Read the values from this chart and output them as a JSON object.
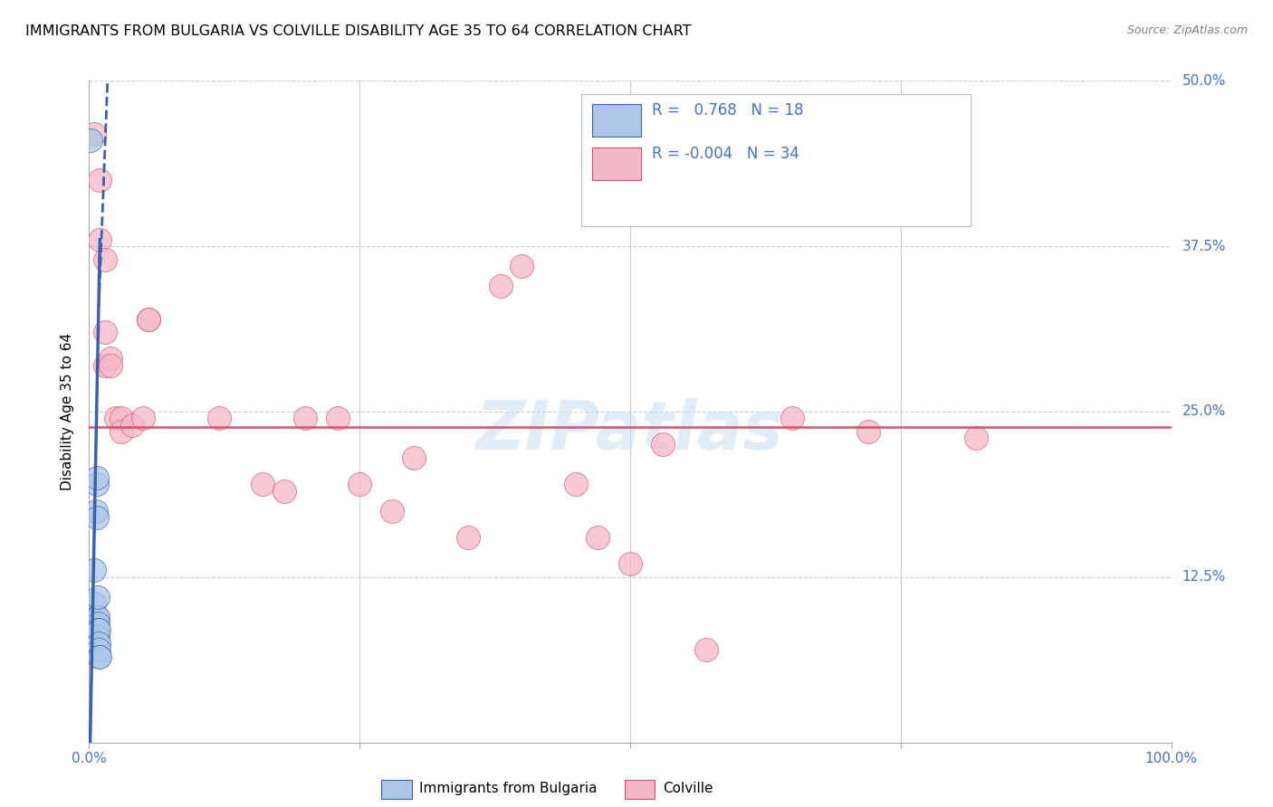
{
  "title": "IMMIGRANTS FROM BULGARIA VS COLVILLE DISABILITY AGE 35 TO 64 CORRELATION CHART",
  "source": "Source: ZipAtlas.com",
  "ylabel": "Disability Age 35 to 64",
  "xlabel": "",
  "xlim": [
    0,
    1.0
  ],
  "ylim": [
    0,
    0.5
  ],
  "xticks": [
    0.0,
    0.25,
    0.5,
    0.75,
    1.0
  ],
  "yticks": [
    0.0,
    0.125,
    0.25,
    0.375,
    0.5
  ],
  "yticklabels": [
    "",
    "12.5%",
    "25.0%",
    "37.5%",
    "50.0%"
  ],
  "legend_r1": "R =   0.768",
  "legend_n1": "N = 18",
  "legend_r2": "R = -0.004",
  "legend_n2": "N = 34",
  "blue_color": "#adc6e8",
  "pink_color": "#f5b8c8",
  "trendline_blue": "#3a60b0",
  "trendline_pink": "#d94f6a",
  "watermark_color": "#c8dff0",
  "watermark": "ZIPatlas",
  "bulgaria_points": [
    [
      0.001,
      0.455
    ],
    [
      0.005,
      0.105
    ],
    [
      0.005,
      0.13
    ],
    [
      0.006,
      0.175
    ],
    [
      0.007,
      0.17
    ],
    [
      0.007,
      0.195
    ],
    [
      0.007,
      0.2
    ],
    [
      0.007,
      0.095
    ],
    [
      0.008,
      0.095
    ],
    [
      0.008,
      0.11
    ],
    [
      0.008,
      0.09
    ],
    [
      0.008,
      0.085
    ],
    [
      0.008,
      0.08
    ],
    [
      0.009,
      0.085
    ],
    [
      0.009,
      0.075
    ],
    [
      0.009,
      0.07
    ],
    [
      0.009,
      0.065
    ],
    [
      0.01,
      0.065
    ]
  ],
  "colville_points": [
    [
      0.005,
      0.46
    ],
    [
      0.01,
      0.425
    ],
    [
      0.01,
      0.38
    ],
    [
      0.015,
      0.365
    ],
    [
      0.015,
      0.31
    ],
    [
      0.015,
      0.285
    ],
    [
      0.02,
      0.29
    ],
    [
      0.02,
      0.285
    ],
    [
      0.025,
      0.245
    ],
    [
      0.03,
      0.245
    ],
    [
      0.03,
      0.235
    ],
    [
      0.04,
      0.24
    ],
    [
      0.05,
      0.245
    ],
    [
      0.055,
      0.32
    ],
    [
      0.055,
      0.32
    ],
    [
      0.12,
      0.245
    ],
    [
      0.16,
      0.195
    ],
    [
      0.18,
      0.19
    ],
    [
      0.2,
      0.245
    ],
    [
      0.23,
      0.245
    ],
    [
      0.25,
      0.195
    ],
    [
      0.28,
      0.175
    ],
    [
      0.3,
      0.215
    ],
    [
      0.35,
      0.155
    ],
    [
      0.38,
      0.345
    ],
    [
      0.4,
      0.36
    ],
    [
      0.45,
      0.195
    ],
    [
      0.47,
      0.155
    ],
    [
      0.5,
      0.135
    ],
    [
      0.53,
      0.225
    ],
    [
      0.57,
      0.07
    ],
    [
      0.65,
      0.245
    ],
    [
      0.72,
      0.235
    ],
    [
      0.82,
      0.23
    ]
  ],
  "bg_trendline": [
    [
      0.0,
      -0.04
    ],
    [
      0.01,
      0.38
    ]
  ],
  "bg_trendline_dashed": [
    [
      0.009,
      0.33
    ],
    [
      0.018,
      0.52
    ]
  ],
  "cv_trendline_y": 0.238
}
